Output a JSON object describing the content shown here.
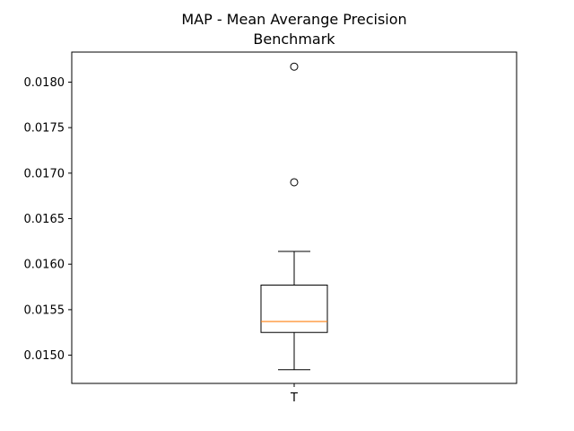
{
  "chart_data": {
    "type": "box",
    "title": "MAP - Mean Averange Precision\nBenchmark",
    "title_lines": [
      "MAP - Mean Averange Precision",
      "Benchmark"
    ],
    "xlabel": "",
    "ylabel": "",
    "categories": [
      "T"
    ],
    "yticks": [
      0.015,
      0.0155,
      0.016,
      0.0165,
      0.017,
      0.0175,
      0.018
    ],
    "ytick_labels": [
      "0.0150",
      "0.0155",
      "0.0160",
      "0.0165",
      "0.0170",
      "0.0175",
      "0.0180"
    ],
    "ylim": [
      0.01469,
      0.01833
    ],
    "grid": false,
    "boxes": [
      {
        "category": "T",
        "whisker_low": 0.01484,
        "q1": 0.01525,
        "median": 0.01537,
        "q3": 0.01577,
        "whisker_high": 0.01614,
        "outliers": [
          0.0169,
          0.01817
        ]
      }
    ],
    "colors": {
      "box": "#000000",
      "median": "#ff7f0e",
      "whisker": "#000000",
      "outlier": "#000000"
    }
  }
}
